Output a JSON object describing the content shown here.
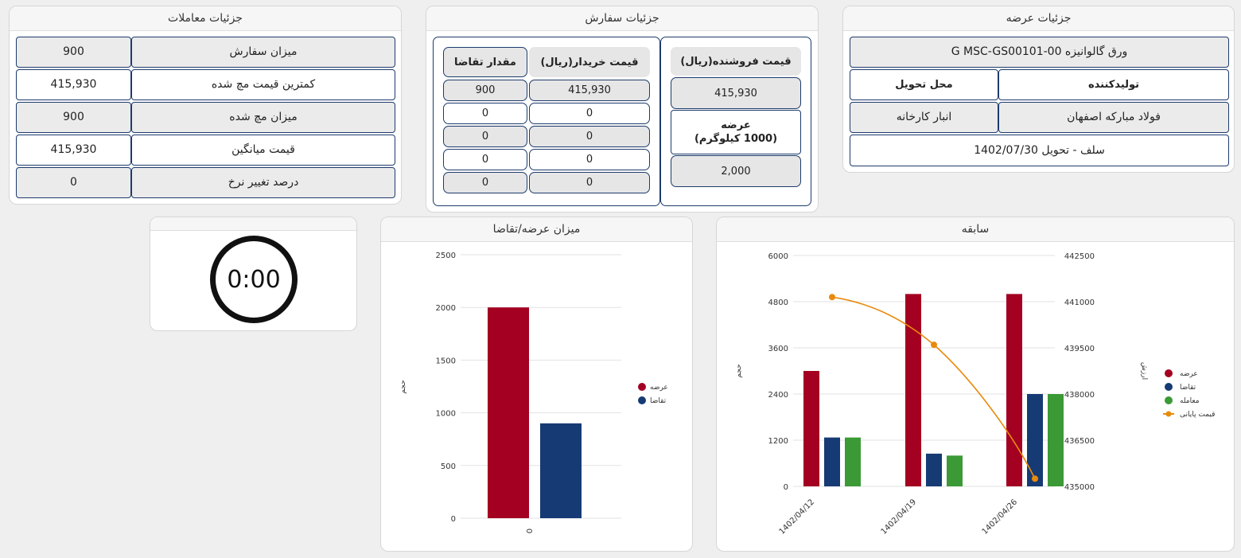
{
  "transactions": {
    "title": "جزئیات معاملات",
    "rows": [
      {
        "label": "میزان سفارش",
        "value": "900"
      },
      {
        "label": "کمترین قیمت مچ شده",
        "value": "415,930"
      },
      {
        "label": "میزان مچ شده",
        "value": "900"
      },
      {
        "label": "قیمت میانگین",
        "value": "415,930"
      },
      {
        "label": "درصد تغییر نرخ",
        "value": "0"
      }
    ]
  },
  "order": {
    "title": "جزئیات سفارش",
    "seller_price_label": "قیمت فروشنده(ریال)",
    "seller_price_value": "415,930",
    "supply_label": "عرضه",
    "supply_unit": "(1000 کیلوگرم)",
    "supply_value": "2,000",
    "buyer_price_label": "قیمت خریدار(ریال)",
    "demand_qty_label": "مقدار تقاضا",
    "bids": [
      {
        "price": "415,930",
        "qty": "900"
      },
      {
        "price": "0",
        "qty": "0"
      },
      {
        "price": "0",
        "qty": "0"
      },
      {
        "price": "0",
        "qty": "0"
      },
      {
        "price": "0",
        "qty": "0"
      }
    ]
  },
  "offer": {
    "title": "جزئیات عرضه",
    "product": "ورق گالوانیزه G MSC-GS00101-00",
    "producer_label": "تولیدکننده",
    "delivery_place_label": "محل تحویل",
    "producer": "فولاد مبارکه اصفهان",
    "delivery_place": "انبار کارخانه",
    "settlement": "سلف - تحویل 1402/07/30"
  },
  "timer": {
    "value": "0:00"
  },
  "colors": {
    "supply": "#a30022",
    "demand": "#163a74",
    "trade": "#3b9a35",
    "final_price": "#e88a0b"
  },
  "chart_data": [
    {
      "type": "bar",
      "title": "میزان عرضه/تقاضا",
      "categories": [
        "0"
      ],
      "series": [
        {
          "name": "عرضه",
          "values": [
            2000
          ]
        },
        {
          "name": "تقاضا",
          "values": [
            900
          ]
        }
      ],
      "ylim": [
        0,
        2500
      ],
      "yticks": [
        "0",
        "500",
        "1000",
        "1500",
        "2000",
        "2500"
      ],
      "ylabel": "حجم",
      "legend": "right",
      "grid": true
    },
    {
      "type": "bar+line",
      "title": "سابقه",
      "categories": [
        "1402/04/12",
        "1402/04/19",
        "1402/04/26"
      ],
      "series": [
        {
          "name": "عرضه",
          "values": [
            3000,
            5000,
            5000
          ]
        },
        {
          "name": "تقاضا",
          "values": [
            1270,
            850,
            2400
          ]
        },
        {
          "name": "معامله",
          "values": [
            1270,
            800,
            2400
          ]
        },
        {
          "name": "قیمت پایانی",
          "type": "line",
          "axis": "right",
          "values": [
            441150,
            439600,
            435250
          ]
        }
      ],
      "ylim": [
        0,
        6000
      ],
      "yticks": [
        "0",
        "1200",
        "2400",
        "3600",
        "4800",
        "6000"
      ],
      "ylim_right": [
        435000,
        442500
      ],
      "yticks_right": [
        "435000",
        "436500",
        "438000",
        "439500",
        "441000",
        "442500"
      ],
      "ylabel": "حجم",
      "ylabel_right": "ارزش",
      "legend": "right",
      "grid": true
    }
  ]
}
